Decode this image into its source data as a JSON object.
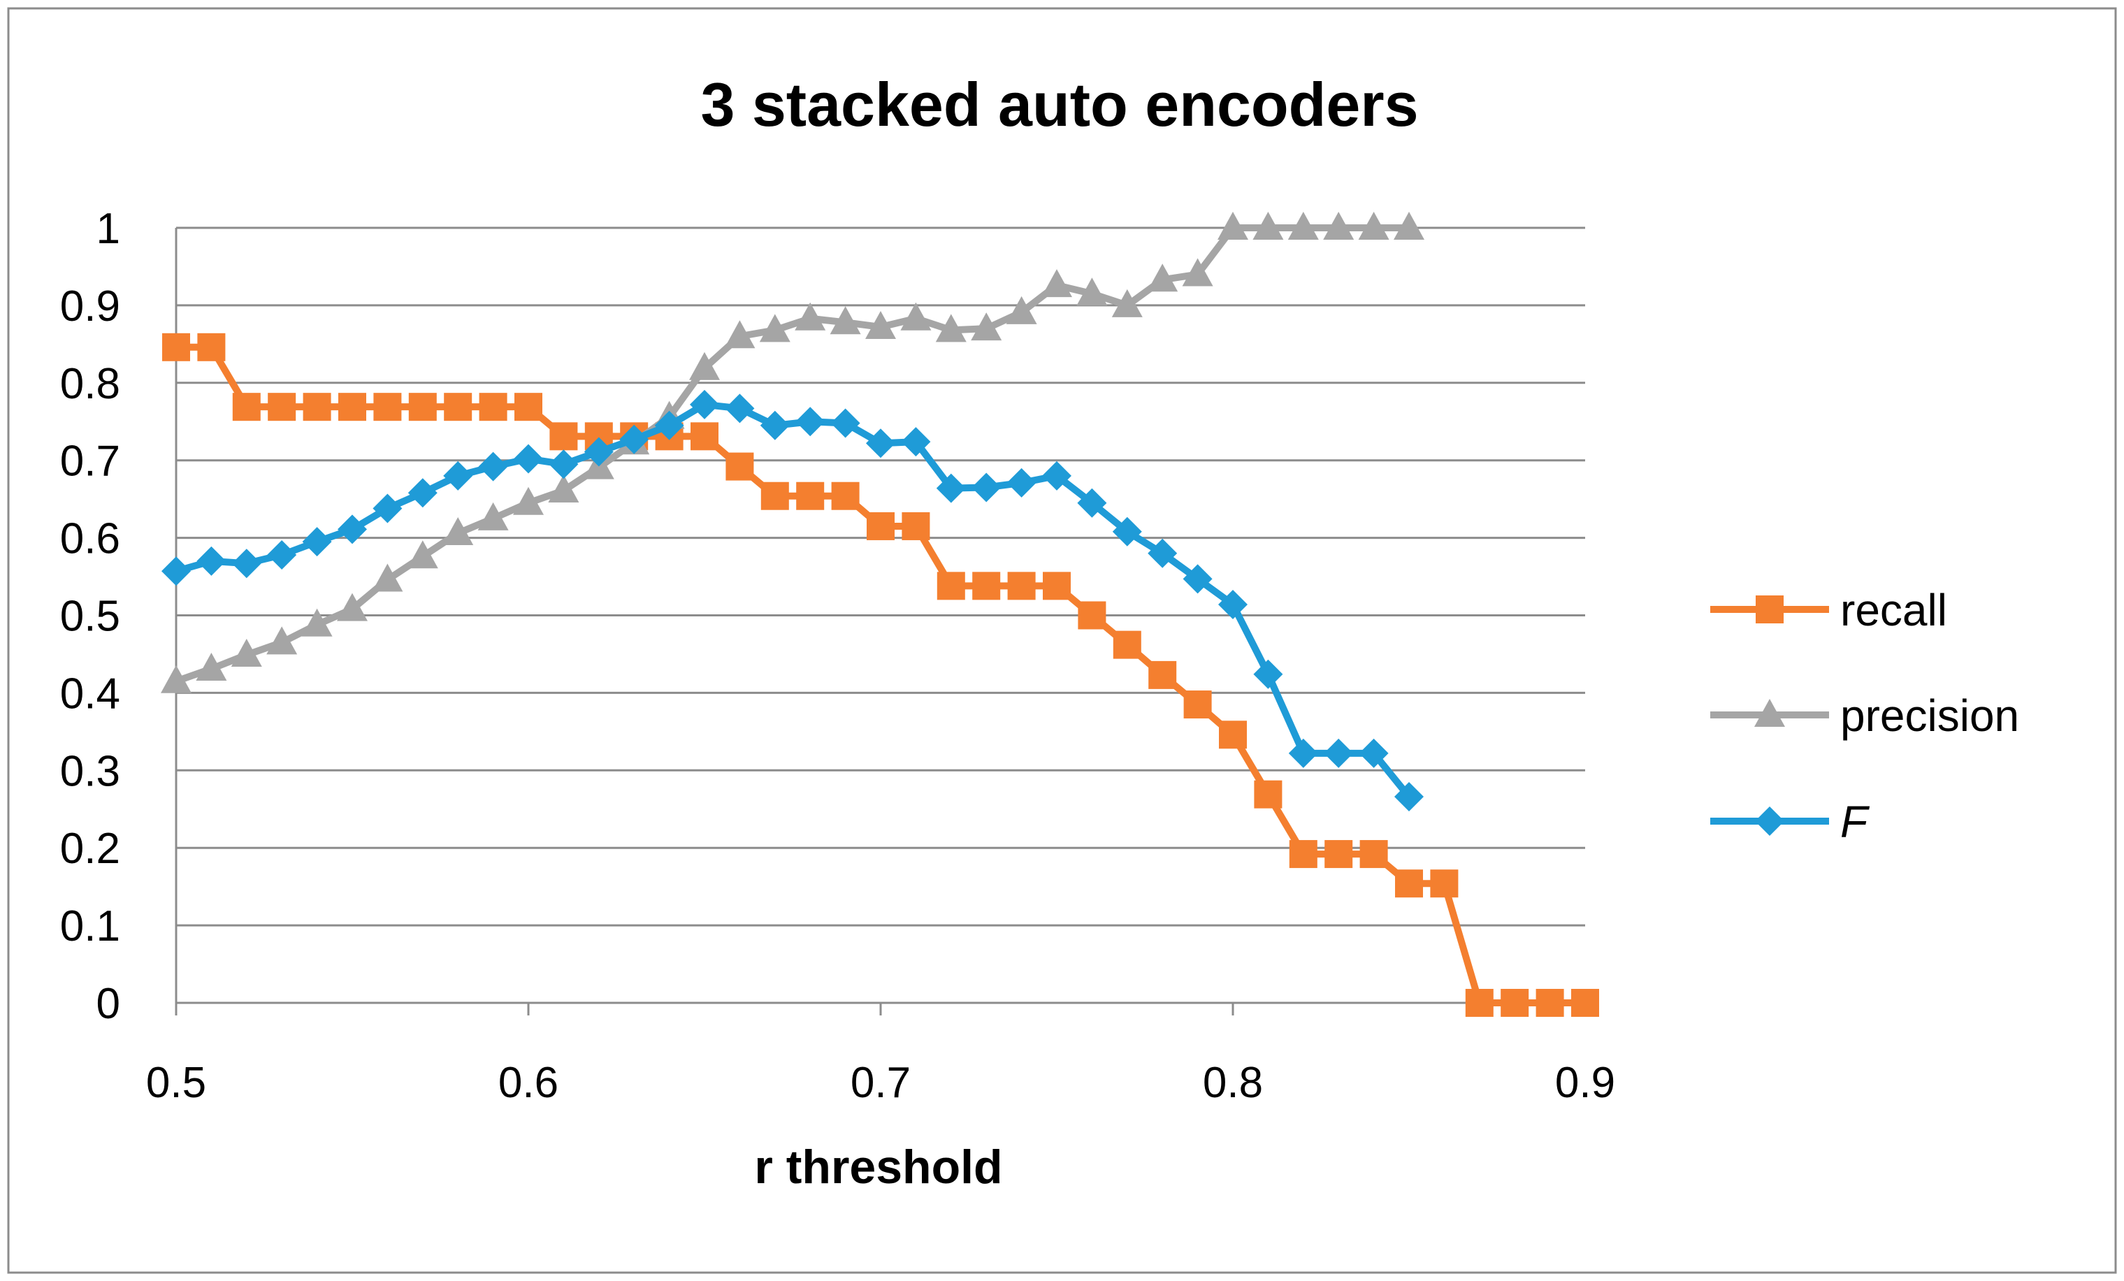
{
  "chart_data": {
    "type": "line",
    "title": "3 stacked auto encoders",
    "xlabel": "r threshold",
    "ylabel": "",
    "xlim": [
      0.5,
      0.9
    ],
    "ylim": [
      0,
      1
    ],
    "x_ticks": [
      "0.5",
      "0.6",
      "0.7",
      "0.8",
      "0.9"
    ],
    "y_ticks": [
      "0",
      "0.1",
      "0.2",
      "0.3",
      "0.4",
      "0.5",
      "0.6",
      "0.7",
      "0.8",
      "0.9",
      "1"
    ],
    "grid": "horizontal",
    "legend_position": "right",
    "series": [
      {
        "name": "recall",
        "color": "#F47F2F",
        "marker": "square",
        "italic": false,
        "x": [
          0.5,
          0.51,
          0.52,
          0.53,
          0.54,
          0.55,
          0.56,
          0.57,
          0.58,
          0.59,
          0.6,
          0.61,
          0.62,
          0.63,
          0.64,
          0.65,
          0.66,
          0.67,
          0.68,
          0.69,
          0.7,
          0.71,
          0.72,
          0.73,
          0.74,
          0.75,
          0.76,
          0.77,
          0.78,
          0.79,
          0.8,
          0.81,
          0.82,
          0.83,
          0.84,
          0.85,
          0.86,
          0.87,
          0.88,
          0.89,
          0.9
        ],
        "values": [
          0.846,
          0.846,
          0.769,
          0.769,
          0.769,
          0.769,
          0.769,
          0.769,
          0.769,
          0.769,
          0.769,
          0.731,
          0.731,
          0.731,
          0.731,
          0.731,
          0.692,
          0.654,
          0.654,
          0.654,
          0.615,
          0.615,
          0.538,
          0.538,
          0.538,
          0.538,
          0.5,
          0.462,
          0.423,
          0.385,
          0.346,
          0.269,
          0.192,
          0.192,
          0.192,
          0.154,
          0.154,
          0.0,
          0.0,
          0.0,
          0.0
        ]
      },
      {
        "name": "precision",
        "color": "#A5A5A5",
        "marker": "triangle",
        "italic": false,
        "x": [
          0.5,
          0.51,
          0.52,
          0.53,
          0.54,
          0.55,
          0.56,
          0.57,
          0.58,
          0.59,
          0.6,
          0.61,
          0.62,
          0.63,
          0.64,
          0.65,
          0.66,
          0.67,
          0.68,
          0.69,
          0.7,
          0.71,
          0.72,
          0.73,
          0.74,
          0.75,
          0.76,
          0.77,
          0.78,
          0.79,
          0.8,
          0.81,
          0.82,
          0.83,
          0.84,
          0.85
        ],
        "values": [
          0.415,
          0.431,
          0.449,
          0.465,
          0.488,
          0.508,
          0.546,
          0.576,
          0.606,
          0.625,
          0.645,
          0.661,
          0.691,
          0.723,
          0.756,
          0.819,
          0.86,
          0.868,
          0.883,
          0.878,
          0.872,
          0.883,
          0.868,
          0.87,
          0.891,
          0.926,
          0.915,
          0.9,
          0.933,
          0.94,
          1.0,
          1.0,
          1.0,
          1.0,
          1.0,
          1.0
        ]
      },
      {
        "name": "F",
        "color": "#1F9BD7",
        "marker": "diamond",
        "italic": true,
        "x": [
          0.5,
          0.51,
          0.52,
          0.53,
          0.54,
          0.55,
          0.56,
          0.57,
          0.58,
          0.59,
          0.6,
          0.61,
          0.62,
          0.63,
          0.64,
          0.65,
          0.66,
          0.67,
          0.68,
          0.69,
          0.7,
          0.71,
          0.72,
          0.73,
          0.74,
          0.75,
          0.76,
          0.77,
          0.78,
          0.79,
          0.8,
          0.81,
          0.82,
          0.83,
          0.84,
          0.85
        ],
        "values": [
          0.557,
          0.57,
          0.567,
          0.578,
          0.595,
          0.611,
          0.638,
          0.658,
          0.68,
          0.692,
          0.702,
          0.695,
          0.711,
          0.727,
          0.745,
          0.772,
          0.767,
          0.745,
          0.75,
          0.748,
          0.722,
          0.724,
          0.664,
          0.665,
          0.671,
          0.68,
          0.645,
          0.608,
          0.58,
          0.547,
          0.514,
          0.424,
          0.322,
          0.322,
          0.322,
          0.266
        ]
      }
    ]
  }
}
